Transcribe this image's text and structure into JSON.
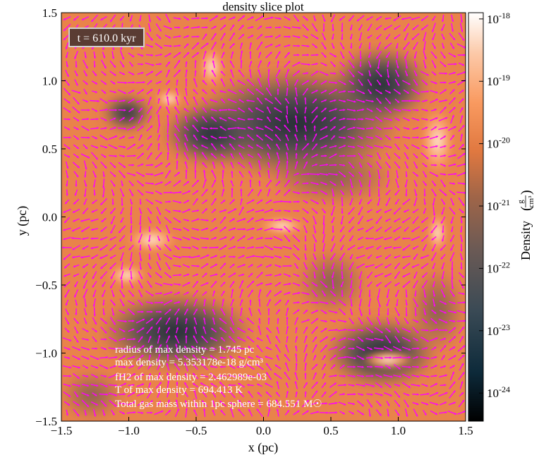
{
  "chart_data": {
    "type": "heatmap",
    "title": "density slice plot",
    "xlabel": "x (pc)",
    "ylabel": "y (pc)",
    "xlim": [
      -1.5,
      1.5
    ],
    "ylim": [
      -1.5,
      1.5
    ],
    "x_ticks": [
      "−1.5",
      "−1.0",
      "−0.5",
      "0.0",
      "0.5",
      "1.0",
      "1.5"
    ],
    "x_tick_values": [
      -1.5,
      -1.0,
      -0.5,
      0.0,
      0.5,
      1.0,
      1.5
    ],
    "y_ticks": [
      "−1.5",
      "−1.0",
      "−0.5",
      "0.0",
      "0.5",
      "1.0",
      "1.5"
    ],
    "y_tick_values": [
      -1.5,
      -1.0,
      -0.5,
      0.0,
      0.5,
      1.0,
      1.5
    ],
    "colorbar": {
      "label": "Density",
      "unit_numerator": "g",
      "unit_denominator": "cm³",
      "scale": "log",
      "range_exponents": [
        -24.45,
        -17.9
      ],
      "ticks": [
        {
          "base": "10",
          "exp": "-24",
          "value_exp": -24
        },
        {
          "base": "10",
          "exp": "-23",
          "value_exp": -23
        },
        {
          "base": "10",
          "exp": "-22",
          "value_exp": -22
        },
        {
          "base": "10",
          "exp": "-21",
          "value_exp": -21
        },
        {
          "base": "10",
          "exp": "-20",
          "value_exp": -20
        },
        {
          "base": "10",
          "exp": "-19",
          "value_exp": -19
        },
        {
          "base": "10",
          "exp": "-18",
          "value_exp": -18
        }
      ],
      "colormap": [
        "#000000",
        "#0d2a3a",
        "#3a4a55",
        "#6b5a55",
        "#a06548",
        "#e07840",
        "#f99a60",
        "#fcc9a8",
        "#ffffff"
      ]
    },
    "overlay": "velocity vector field (magenta arrows)",
    "overlay_color": "#ff00ff",
    "time_label": "t = 610.0 kyr",
    "annotations": [
      "radius of max density = 1.745 pc",
      "max density = 5.353178e-18 g/cm³",
      "fH2 of max density = 2.462989e-03",
      "T of max density = 694.413 K",
      "Total gas mass within 1pc sphere = 684.551 M☉"
    ]
  }
}
